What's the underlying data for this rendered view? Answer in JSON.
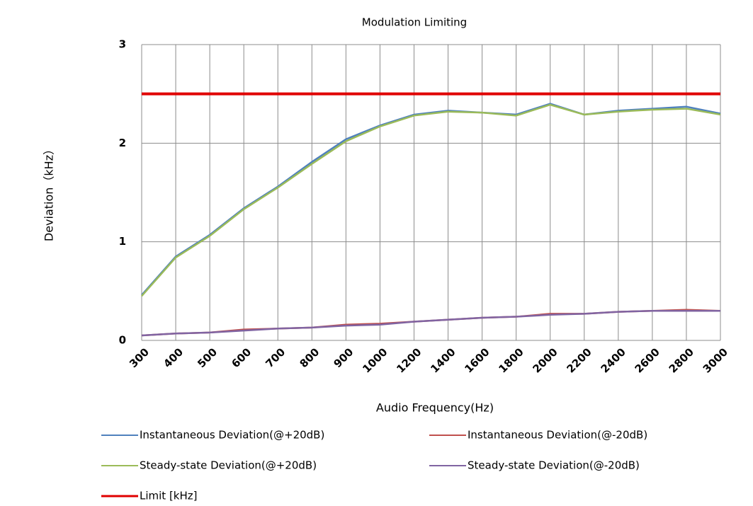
{
  "chart_data": {
    "type": "line",
    "title": "Modulation Limiting",
    "x_label": "Audio Frequency(Hz)",
    "y_label": "Deviation（kHz）",
    "categories": [
      "300",
      "400",
      "500",
      "600",
      "700",
      "800",
      "900",
      "1000",
      "1200",
      "1400",
      "1600",
      "1800",
      "2000",
      "2200",
      "2400",
      "2600",
      "2800",
      "3000"
    ],
    "series": [
      {
        "name": "Instantaneous Deviation(@+20dB)",
        "color": "#4f81bd",
        "values": [
          0.46,
          0.85,
          1.07,
          1.34,
          1.56,
          1.81,
          2.04,
          2.18,
          2.29,
          2.33,
          2.31,
          2.29,
          2.4,
          2.29,
          2.33,
          2.35,
          2.37,
          2.3
        ]
      },
      {
        "name": "Instantaneous Deviation(@-20dB)",
        "color": "#c0504d",
        "values": [
          0.05,
          0.07,
          0.08,
          0.11,
          0.12,
          0.13,
          0.16,
          0.17,
          0.19,
          0.21,
          0.23,
          0.24,
          0.27,
          0.27,
          0.29,
          0.3,
          0.31,
          0.3
        ]
      },
      {
        "name": "Steady-state Deviation(@+20dB)",
        "color": "#9bbb59",
        "values": [
          0.45,
          0.84,
          1.06,
          1.33,
          1.55,
          1.79,
          2.02,
          2.17,
          2.28,
          2.32,
          2.31,
          2.28,
          2.39,
          2.29,
          2.32,
          2.34,
          2.35,
          2.29
        ]
      },
      {
        "name": "Steady-state Deviation(@-20dB)",
        "color": "#8064a2",
        "values": [
          0.05,
          0.07,
          0.08,
          0.1,
          0.12,
          0.13,
          0.15,
          0.16,
          0.19,
          0.21,
          0.23,
          0.24,
          0.26,
          0.27,
          0.29,
          0.3,
          0.3,
          0.3
        ]
      },
      {
        "name": "Limit [kHz]",
        "color": "#e00000",
        "values": [
          2.5,
          2.5,
          2.5,
          2.5,
          2.5,
          2.5,
          2.5,
          2.5,
          2.5,
          2.5,
          2.5,
          2.5,
          2.5,
          2.5,
          2.5,
          2.5,
          2.5,
          2.5
        ]
      }
    ],
    "ylim": [
      0,
      3
    ],
    "yticks": [
      0,
      1,
      2,
      3
    ],
    "grid": true
  }
}
